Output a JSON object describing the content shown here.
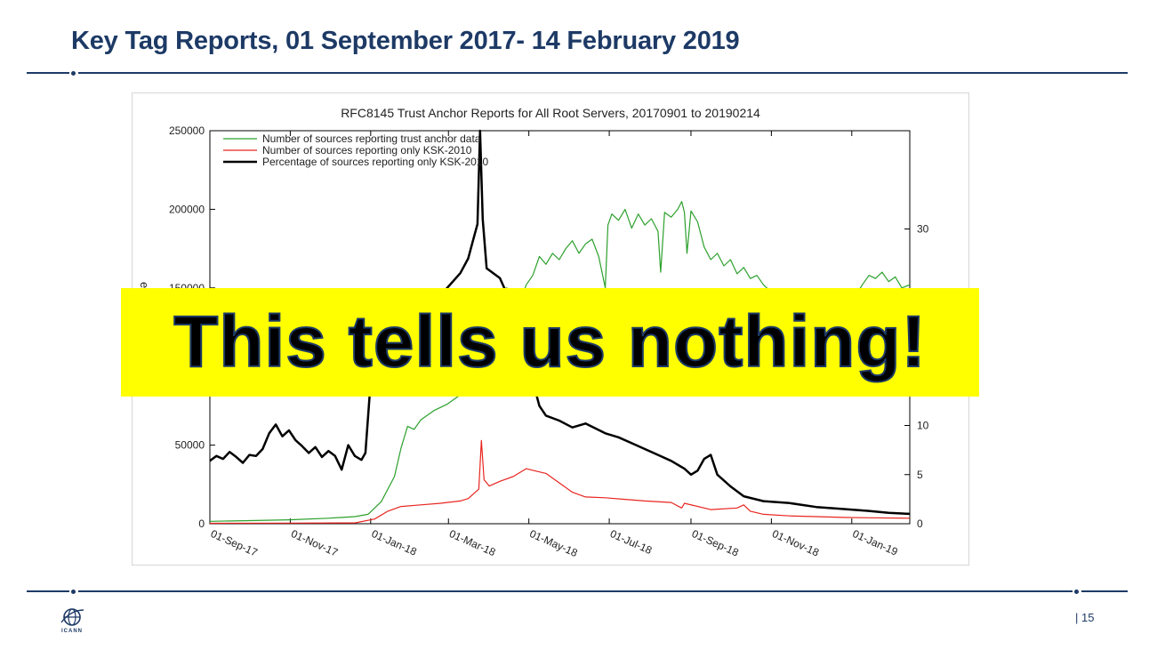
{
  "slide": {
    "title": "Key Tag Reports, 01 September 2017- 14 February 2019",
    "page_number": "| 15",
    "logo_text": "ICANN",
    "overlay_text": "This tells us nothing!",
    "accent_color": "#1d3a66",
    "overlay_color": "#ffff00"
  },
  "chart_data": {
    "type": "line",
    "title": "RFC8145 Trust Anchor Reports for All Root Servers, 20170901 to 20190214",
    "ylabel_partial": "es",
    "ylim": [
      0,
      250000
    ],
    "y2lim": [
      0,
      40
    ],
    "y_ticks": [
      "0",
      "50000",
      "150000",
      "200000",
      "250000"
    ],
    "y_tick_values": [
      0,
      50000,
      150000,
      200000,
      250000
    ],
    "y2_ticks": [
      "0",
      "5",
      "10",
      "30"
    ],
    "y2_tick_values": [
      0,
      5,
      10,
      30
    ],
    "x_ticks": [
      "01-Sep-17",
      "01-Nov-17",
      "01-Jan-18",
      "01-Mar-18",
      "01-May-18",
      "01-Jul-18",
      "01-Sep-18",
      "01-Nov-18",
      "01-Jan-19"
    ],
    "x_tick_days": [
      0,
      61,
      122,
      181,
      242,
      303,
      365,
      426,
      487
    ],
    "x_range_days": [
      0,
      531
    ],
    "legend_position": "top-left",
    "series": [
      {
        "name": "Number of sources reporting trust anchor data",
        "color": "#2ca02c",
        "axis": "left",
        "points": [
          [
            0,
            1500
          ],
          [
            30,
            2000
          ],
          [
            60,
            2500
          ],
          [
            90,
            3500
          ],
          [
            110,
            4500
          ],
          [
            120,
            6000
          ],
          [
            130,
            14000
          ],
          [
            140,
            30000
          ],
          [
            145,
            48000
          ],
          [
            150,
            62000
          ],
          [
            155,
            60000
          ],
          [
            160,
            66000
          ],
          [
            170,
            72000
          ],
          [
            180,
            76000
          ],
          [
            190,
            82000
          ],
          [
            196,
            88000
          ],
          [
            200,
            92000
          ],
          [
            205,
            105000
          ],
          [
            210,
            118000
          ],
          [
            215,
            128000
          ],
          [
            220,
            140000
          ],
          [
            225,
            150000
          ],
          [
            230,
            148000
          ],
          [
            235,
            140000
          ],
          [
            240,
            152000
          ],
          [
            245,
            158000
          ],
          [
            250,
            170000
          ],
          [
            255,
            165000
          ],
          [
            260,
            172000
          ],
          [
            265,
            168000
          ],
          [
            270,
            175000
          ],
          [
            275,
            180000
          ],
          [
            280,
            172000
          ],
          [
            285,
            178000
          ],
          [
            290,
            181000
          ],
          [
            295,
            170000
          ],
          [
            300,
            150000
          ],
          [
            302,
            190000
          ],
          [
            305,
            197000
          ],
          [
            310,
            193000
          ],
          [
            315,
            200000
          ],
          [
            320,
            188000
          ],
          [
            325,
            197000
          ],
          [
            330,
            190000
          ],
          [
            335,
            194000
          ],
          [
            340,
            186000
          ],
          [
            342,
            160000
          ],
          [
            345,
            198000
          ],
          [
            350,
            195000
          ],
          [
            355,
            200000
          ],
          [
            358,
            205000
          ],
          [
            360,
            198000
          ],
          [
            362,
            172000
          ],
          [
            365,
            199000
          ],
          [
            370,
            192000
          ],
          [
            375,
            176000
          ],
          [
            380,
            168000
          ],
          [
            385,
            172000
          ],
          [
            390,
            164000
          ],
          [
            395,
            168000
          ],
          [
            400,
            159000
          ],
          [
            405,
            163000
          ],
          [
            410,
            156000
          ],
          [
            415,
            158000
          ],
          [
            420,
            152000
          ],
          [
            425,
            148000
          ],
          [
            430,
            146000
          ],
          [
            440,
            143000
          ],
          [
            450,
            145000
          ],
          [
            460,
            140000
          ],
          [
            470,
            142000
          ],
          [
            480,
            141000
          ],
          [
            490,
            145000
          ],
          [
            495,
            152000
          ],
          [
            500,
            158000
          ],
          [
            505,
            156000
          ],
          [
            510,
            160000
          ],
          [
            515,
            154000
          ],
          [
            520,
            157000
          ],
          [
            525,
            150000
          ],
          [
            531,
            152000
          ]
        ]
      },
      {
        "name": "Number of sources reporting only KSK-2010",
        "color": "#e8251f",
        "axis": "left",
        "points": [
          [
            0,
            300
          ],
          [
            60,
            400
          ],
          [
            110,
            500
          ],
          [
            125,
            3000
          ],
          [
            135,
            8000
          ],
          [
            145,
            11000
          ],
          [
            160,
            12000
          ],
          [
            175,
            13000
          ],
          [
            190,
            14500
          ],
          [
            196,
            16000
          ],
          [
            200,
            19000
          ],
          [
            204,
            22000
          ],
          [
            206,
            53000
          ],
          [
            208,
            28000
          ],
          [
            212,
            24000
          ],
          [
            220,
            27000
          ],
          [
            230,
            30000
          ],
          [
            240,
            35000
          ],
          [
            245,
            34000
          ],
          [
            255,
            32000
          ],
          [
            265,
            26000
          ],
          [
            275,
            20000
          ],
          [
            285,
            17000
          ],
          [
            300,
            16500
          ],
          [
            315,
            15500
          ],
          [
            330,
            14500
          ],
          [
            350,
            13500
          ],
          [
            358,
            10000
          ],
          [
            360,
            13000
          ],
          [
            380,
            9000
          ],
          [
            400,
            10000
          ],
          [
            405,
            12000
          ],
          [
            410,
            8000
          ],
          [
            420,
            6000
          ],
          [
            440,
            5000
          ],
          [
            460,
            4500
          ],
          [
            480,
            4000
          ],
          [
            500,
            3800
          ],
          [
            531,
            3500
          ]
        ]
      },
      {
        "name": "Percentage of sources reporting only KSK-2010",
        "color": "#000000",
        "axis": "right",
        "points": [
          [
            0,
            6.4
          ],
          [
            5,
            6.9
          ],
          [
            10,
            6.6
          ],
          [
            15,
            7.3
          ],
          [
            20,
            6.8
          ],
          [
            25,
            6.2
          ],
          [
            30,
            7.0
          ],
          [
            35,
            6.9
          ],
          [
            40,
            7.6
          ],
          [
            45,
            9.2
          ],
          [
            50,
            10.1
          ],
          [
            55,
            8.9
          ],
          [
            60,
            9.5
          ],
          [
            65,
            8.5
          ],
          [
            70,
            7.9
          ],
          [
            75,
            7.2
          ],
          [
            80,
            7.8
          ],
          [
            85,
            6.8
          ],
          [
            90,
            7.4
          ],
          [
            95,
            6.9
          ],
          [
            100,
            5.5
          ],
          [
            105,
            8.0
          ],
          [
            110,
            6.9
          ],
          [
            115,
            6.5
          ],
          [
            118,
            7.2
          ],
          [
            122,
            14.5
          ],
          [
            126,
            20.0
          ],
          [
            130,
            21.5
          ],
          [
            135,
            22.0
          ],
          [
            140,
            20.5
          ],
          [
            150,
            21.0
          ],
          [
            160,
            22.0
          ],
          [
            170,
            22.5
          ],
          [
            180,
            24.0
          ],
          [
            190,
            25.5
          ],
          [
            196,
            27.0
          ],
          [
            200,
            29.0
          ],
          [
            203,
            30.5
          ],
          [
            205,
            40.0
          ],
          [
            207,
            31.0
          ],
          [
            210,
            26.0
          ],
          [
            220,
            25.0
          ],
          [
            230,
            22.0
          ],
          [
            235,
            20.0
          ],
          [
            240,
            17.5
          ],
          [
            245,
            14.5
          ],
          [
            250,
            12.0
          ],
          [
            255,
            11.0
          ],
          [
            265,
            10.5
          ],
          [
            275,
            9.8
          ],
          [
            285,
            10.2
          ],
          [
            300,
            9.2
          ],
          [
            310,
            8.8
          ],
          [
            320,
            8.2
          ],
          [
            330,
            7.6
          ],
          [
            340,
            7.0
          ],
          [
            350,
            6.4
          ],
          [
            360,
            5.6
          ],
          [
            365,
            5.0
          ],
          [
            370,
            5.4
          ],
          [
            375,
            6.6
          ],
          [
            380,
            7.0
          ],
          [
            385,
            5.0
          ],
          [
            395,
            3.8
          ],
          [
            405,
            2.8
          ],
          [
            420,
            2.3
          ],
          [
            440,
            2.1
          ],
          [
            460,
            1.7
          ],
          [
            480,
            1.5
          ],
          [
            500,
            1.3
          ],
          [
            515,
            1.1
          ],
          [
            531,
            1.0
          ]
        ]
      }
    ]
  }
}
